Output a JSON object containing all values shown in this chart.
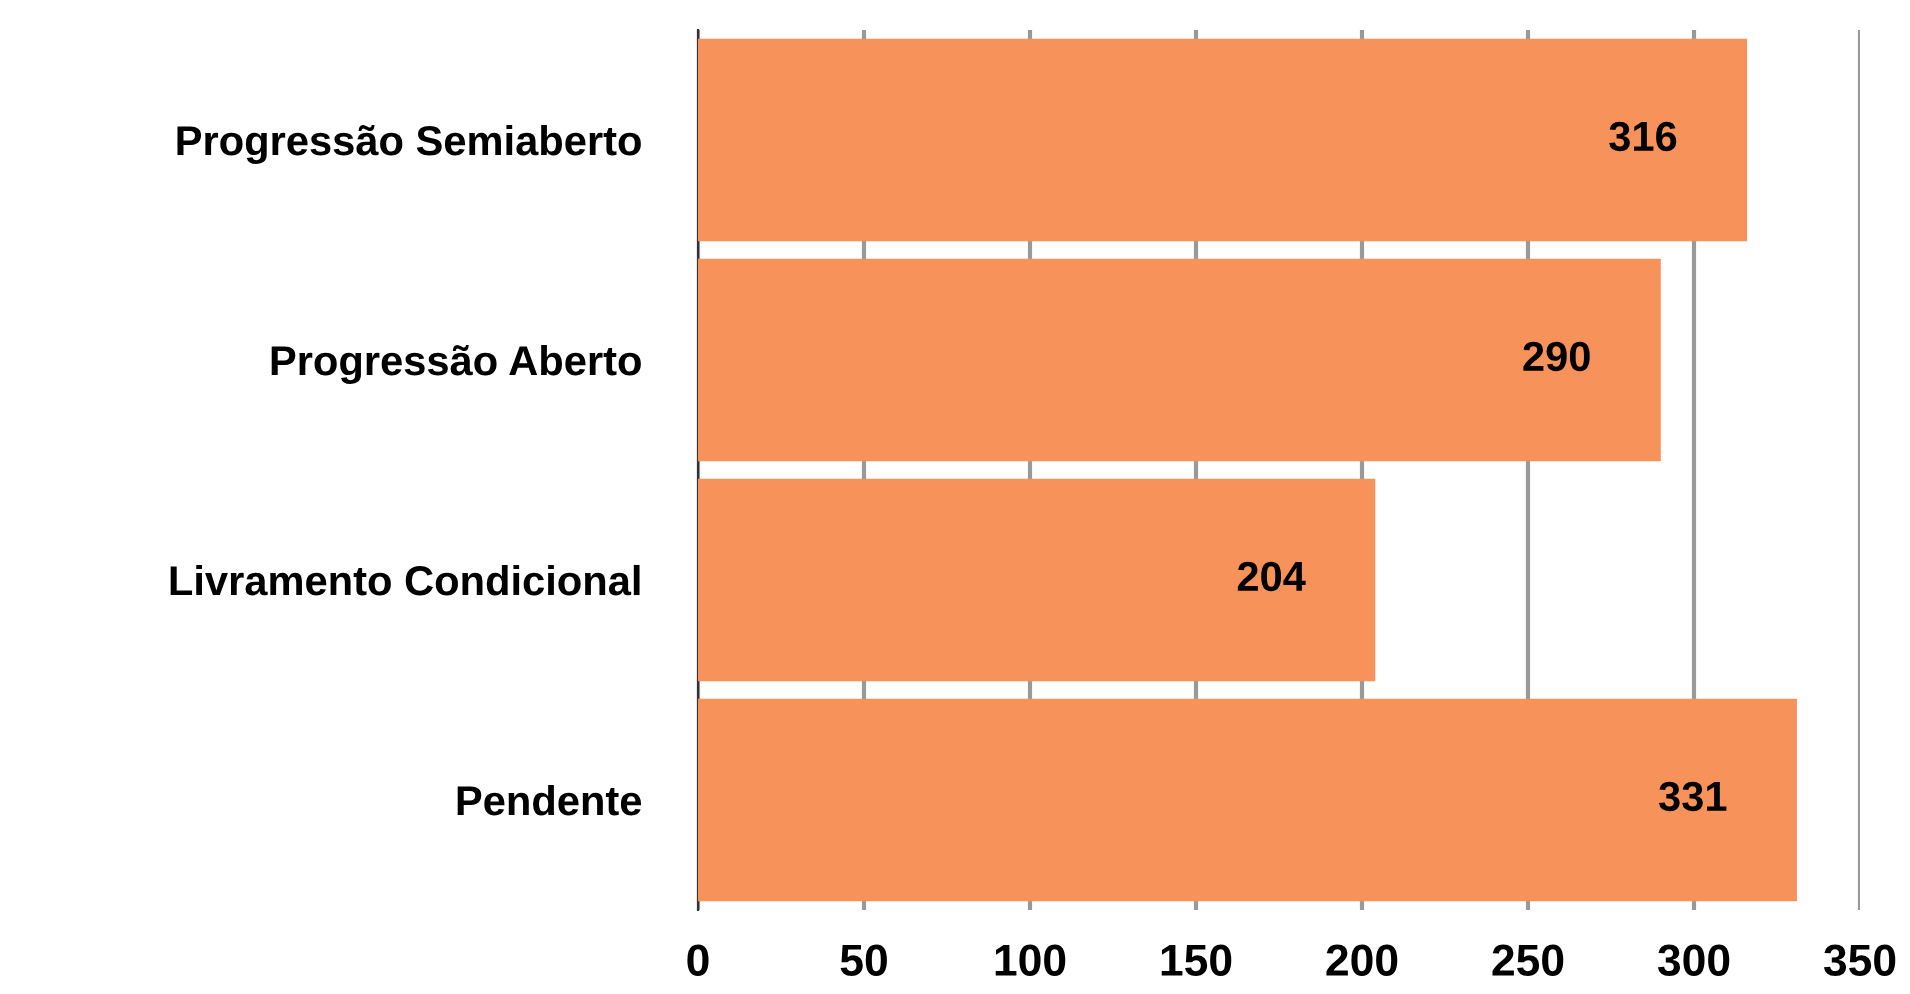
{
  "chart_data": {
    "type": "bar",
    "orientation": "horizontal",
    "categories": [
      "Progressão Semiaberto",
      "Progressão Aberto",
      "Livramento Condicional",
      "Pendente"
    ],
    "values": [
      316,
      290,
      204,
      331
    ],
    "color": "#f7925a",
    "xlim": [
      0,
      350
    ],
    "xticks": [
      0,
      50,
      100,
      150,
      200,
      250,
      300,
      350
    ],
    "grid": "x",
    "data_labels": true
  }
}
